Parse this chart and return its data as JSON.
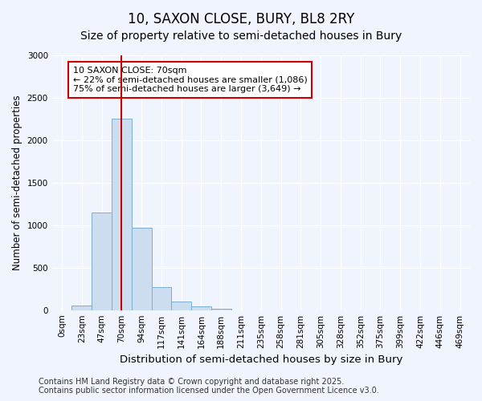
{
  "title": "10, SAXON CLOSE, BURY, BL8 2RY",
  "subtitle": "Size of property relative to semi-detached houses in Bury",
  "xlabel": "Distribution of semi-detached houses by size in Bury",
  "ylabel": "Number of semi-detached properties",
  "bar_labels": [
    "0sqm",
    "23sqm",
    "47sqm",
    "70sqm",
    "94sqm",
    "117sqm",
    "141sqm",
    "164sqm",
    "188sqm",
    "211sqm",
    "235sqm",
    "258sqm",
    "281sqm",
    "305sqm",
    "328sqm",
    "352sqm",
    "375sqm",
    "399sqm",
    "422sqm",
    "446sqm",
    "469sqm"
  ],
  "bar_values": [
    0,
    50,
    1150,
    2250,
    970,
    270,
    105,
    40,
    15,
    0,
    0,
    0,
    0,
    0,
    0,
    0,
    0,
    0,
    0,
    0,
    0
  ],
  "bar_color": "#ccddf0",
  "bar_edge_color": "#7bafd4",
  "vline_x": 3,
  "vline_color": "#cc0000",
  "ylim": [
    0,
    3000
  ],
  "yticks": [
    0,
    500,
    1000,
    1500,
    2000,
    2500,
    3000
  ],
  "annotation_title": "10 SAXON CLOSE: 70sqm",
  "annotation_line1": "← 22% of semi-detached houses are smaller (1,086)",
  "annotation_line2": "75% of semi-detached houses are larger (3,649) →",
  "annotation_box_color": "#cc0000",
  "footer_line1": "Contains HM Land Registry data © Crown copyright and database right 2025.",
  "footer_line2": "Contains public sector information licensed under the Open Government Licence v3.0.",
  "background_color": "#f0f4fc",
  "plot_bg_color": "#f0f4fc",
  "grid_color": "#ffffff",
  "title_fontsize": 12,
  "subtitle_fontsize": 10,
  "xlabel_fontsize": 9.5,
  "ylabel_fontsize": 8.5,
  "tick_fontsize": 7.5,
  "footer_fontsize": 7,
  "ann_fontsize": 8
}
